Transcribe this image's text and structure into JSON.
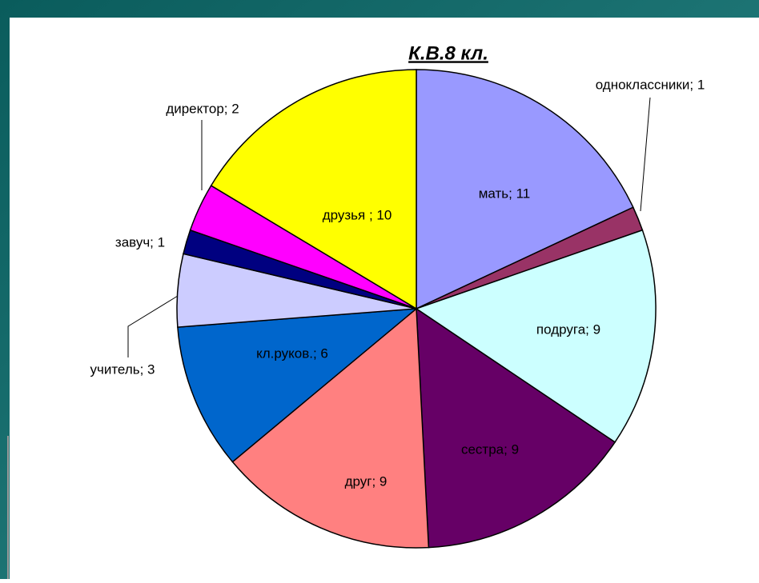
{
  "chart_data": {
    "type": "pie",
    "title": "К.В.8 кл.",
    "values": [
      11,
      1,
      9,
      9,
      9,
      6,
      3,
      1,
      2,
      10
    ],
    "value_labels": [
      "мать; 11",
      "одноклассники; 1",
      "подруга; 9",
      "сестра; 9",
      "друг; 9",
      "кл.руков.; 6",
      "учитель; 3",
      "завуч; 1",
      "директор; 2",
      "друзья ; 10"
    ],
    "colors": [
      "#9999ff",
      "#993366",
      "#ccffff",
      "#660066",
      "#ff8080",
      "#0066cc",
      "#ccccff",
      "#000080",
      "#ff00ff",
      "#ffff00"
    ]
  }
}
